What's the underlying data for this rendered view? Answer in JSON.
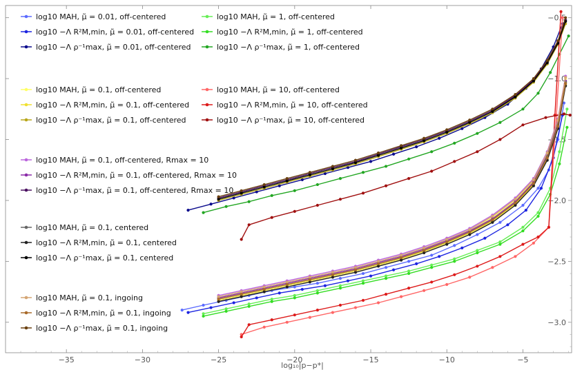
{
  "chart_data": {
    "type": "line",
    "xlabel": "log₁₀|p−p*|",
    "ylabel": "",
    "xlim": [
      -39,
      -1.8
    ],
    "ylim": [
      -3.25,
      -0.4
    ],
    "xticks": [
      -35,
      -30,
      -25,
      -20,
      -15,
      -10,
      -5
    ],
    "yticks": [
      -0.5,
      -1.0,
      -1.5,
      -2.0,
      -2.5,
      -3.0
    ],
    "xtick_labels": [
      "−35",
      "−30",
      "−25",
      "−20",
      "−15",
      "−10",
      "−5"
    ],
    "ytick_labels": [
      "−0.5",
      "−1.0",
      "−1.5",
      "−2.0",
      "−2.5",
      "−3.0"
    ],
    "legend_groups": [
      {
        "entries": [
          {
            "name": "log10 MAH,        μ̃ = 0.01, off-centered",
            "color": "#5b6bff"
          },
          {
            "name": "log10 −Λ R²M,min, μ̃ = 0.01, off-centered",
            "color": "#1c24e0"
          },
          {
            "name": "log10 −Λ ρ⁻¹max,    μ̃ = 0.01, off-centered",
            "color": "#0a0a8c"
          }
        ]
      },
      {
        "entries": [
          {
            "name": "log10 MAH,        μ̃ = 1, off-centered",
            "color": "#66ee55"
          },
          {
            "name": "log10 −Λ R²M,min, μ̃ = 1, off-centered",
            "color": "#33dd22"
          },
          {
            "name": "log10 −Λ ρ⁻¹max,    μ̃ = 1, off-centered",
            "color": "#22a622"
          }
        ]
      },
      {
        "entries": [
          {
            "name": "log10 MAH,        μ̃ = 0.1, off-centered",
            "color": "#ffff66"
          },
          {
            "name": "log10 −Λ R²M,min, μ̃ = 0.1, off-centered",
            "color": "#f0e030"
          },
          {
            "name": "log10 −Λ ρ⁻¹max,    μ̃ = 0.1, off-centered",
            "color": "#b8a61a"
          }
        ]
      },
      {
        "entries": [
          {
            "name": "log10 MAH,        μ̃ = 10, off-centered",
            "color": "#ff6666"
          },
          {
            "name": "log10 −Λ R²M,min, μ̃ = 10, off-centered",
            "color": "#dd1a1a"
          },
          {
            "name": "log10 −Λ ρ⁻¹max,    μ̃ = 10, off-centered",
            "color": "#a01010"
          }
        ]
      },
      {
        "entries": [
          {
            "name": "log10 MAH,        μ̃ = 0.1, off-centered, Rmax = 10",
            "color": "#bb66dd"
          },
          {
            "name": "log10 −Λ R²M,min, μ̃ = 0.1, off-centered, Rmax = 10",
            "color": "#8a2aa8"
          },
          {
            "name": "log10 −Λ ρ⁻¹max,    μ̃ = 0.1, off-centered, Rmax = 10",
            "color": "#4a1060"
          }
        ]
      },
      {
        "entries": [
          {
            "name": "log10 MAH,        μ̃ = 0.1, centered",
            "color": "#666666"
          },
          {
            "name": "log10 −Λ R²M,min, μ̃ = 0.1, centered",
            "color": "#222222"
          },
          {
            "name": "log10 −Λ ρ⁻¹max,    μ̃ = 0.1, centered",
            "color": "#000000"
          }
        ]
      },
      {
        "entries": [
          {
            "name": "log10 MAH,        μ̃ = 0.1, ingoing",
            "color": "#d4a574"
          },
          {
            "name": "log10 −Λ R²M,min, μ̃ = 0.1, ingoing",
            "color": "#a86a2a"
          },
          {
            "name": "log10 −Λ ρ⁻¹max,    μ̃ = 0.1, ingoing",
            "color": "#6a4010"
          }
        ]
      }
    ],
    "legend_labels": [
      [
        "log",
        "10",
        "M",
        "AH",
        ",",
        "μ̃ = 0.01, off-centered"
      ],
      [
        "log",
        "10",
        "−Λ R",
        "M,min",
        ",",
        "μ̃ = 0.01, off-centered"
      ],
      [
        "log",
        "10",
        "−Λ ρ",
        "max",
        ",",
        "μ̃ = 0.01, off-centered"
      ]
    ],
    "series": [
      {
        "name": "log10 MAH, μ̃ = 0.01, off-centered",
        "color": "#5b6bff",
        "x": [
          -27.4,
          -26,
          -24.5,
          -23,
          -21.5,
          -20,
          -18.5,
          -17,
          -15.5,
          -14,
          -12.5,
          -11,
          -9.5,
          -8,
          -6.5,
          -5,
          -4,
          -3.3,
          -2.7,
          -2.3
        ],
        "y": [
          -2.9,
          -2.86,
          -2.82,
          -2.78,
          -2.74,
          -2.71,
          -2.68,
          -2.64,
          -2.6,
          -2.55,
          -2.5,
          -2.45,
          -2.37,
          -2.28,
          -2.18,
          -2.04,
          -1.9,
          -1.75,
          -1.5,
          -1.2
        ]
      },
      {
        "name": "log10 −Λ R²M,min, μ̃ = 0.01, off-centered",
        "color": "#1c24e0",
        "x": [
          -27,
          -25.5,
          -24,
          -22.5,
          -21,
          -19.5,
          -18,
          -16.5,
          -15,
          -13.5,
          -12,
          -10.5,
          -9,
          -7.5,
          -6,
          -4.8,
          -3.8,
          -3,
          -2.4
        ],
        "y": [
          -2.92,
          -2.88,
          -2.84,
          -2.8,
          -2.76,
          -2.73,
          -2.7,
          -2.66,
          -2.62,
          -2.57,
          -2.52,
          -2.46,
          -2.39,
          -2.31,
          -2.2,
          -2.08,
          -1.9,
          -1.65,
          -1.3
        ]
      },
      {
        "name": "log10 −Λ ρ⁻¹max, μ̃ = 0.01, off-centered",
        "color": "#0a0a8c",
        "x": [
          -27,
          -25.5,
          -24,
          -22.5,
          -21,
          -19.5,
          -18,
          -16.5,
          -15,
          -13.5,
          -12,
          -10.5,
          -9,
          -7.5,
          -6,
          -4.8,
          -3.8,
          -3,
          -2.4
        ],
        "y": [
          -2.08,
          -2.03,
          -1.98,
          -1.93,
          -1.88,
          -1.83,
          -1.78,
          -1.73,
          -1.68,
          -1.62,
          -1.56,
          -1.49,
          -1.41,
          -1.32,
          -1.21,
          -1.08,
          -0.92,
          -0.74,
          -0.55
        ]
      },
      {
        "name": "log10 MAH, μ̃ = 1, off-centered",
        "color": "#66ee55",
        "x": [
          -26,
          -24.5,
          -23,
          -21.5,
          -20,
          -18.5,
          -17,
          -15.5,
          -14,
          -12.5,
          -11,
          -9.5,
          -8,
          -6.5,
          -5,
          -4,
          -3.2,
          -2.6,
          -2.1
        ],
        "y": [
          -2.93,
          -2.89,
          -2.85,
          -2.81,
          -2.78,
          -2.74,
          -2.7,
          -2.66,
          -2.62,
          -2.58,
          -2.53,
          -2.48,
          -2.41,
          -2.34,
          -2.22,
          -2.1,
          -1.9,
          -1.6,
          -1.25
        ]
      },
      {
        "name": "log10 −Λ R²M,min, μ̃ = 1, off-centered",
        "color": "#33dd22",
        "x": [
          -26,
          -24.5,
          -23,
          -21.5,
          -20,
          -18.5,
          -17,
          -15.5,
          -14,
          -12.5,
          -11,
          -9.5,
          -8,
          -6.5,
          -5,
          -4,
          -3.2,
          -2.6,
          -2.1
        ],
        "y": [
          -2.95,
          -2.91,
          -2.87,
          -2.83,
          -2.8,
          -2.76,
          -2.72,
          -2.68,
          -2.64,
          -2.6,
          -2.55,
          -2.5,
          -2.43,
          -2.36,
          -2.25,
          -2.13,
          -1.95,
          -1.7,
          -1.4
        ]
      },
      {
        "name": "log10 −Λ ρ⁻¹max, μ̃ = 1, off-centered",
        "color": "#22a622",
        "x": [
          -26,
          -24.5,
          -23,
          -21.5,
          -20,
          -18.5,
          -17,
          -15.5,
          -14,
          -12.5,
          -11,
          -9.5,
          -8,
          -6.5,
          -5,
          -4,
          -3.2,
          -2.6,
          -2
        ],
        "y": [
          -2.1,
          -2.05,
          -2.01,
          -1.96,
          -1.92,
          -1.87,
          -1.82,
          -1.77,
          -1.72,
          -1.66,
          -1.6,
          -1.53,
          -1.45,
          -1.36,
          -1.25,
          -1.12,
          -0.95,
          -0.8,
          -0.65
        ]
      },
      {
        "name": "log10 MAH, μ̃ = 0.1, off-centered",
        "color": "#ffff66",
        "x": [
          -25,
          -23.5,
          -22,
          -20.5,
          -19,
          -17.5,
          -16,
          -14.5,
          -13,
          -11.5,
          -10,
          -8.5,
          -7,
          -5.5,
          -4.3,
          -3.4,
          -2.7,
          -2.2
        ],
        "y": [
          -2.8,
          -2.76,
          -2.72,
          -2.68,
          -2.64,
          -2.6,
          -2.56,
          -2.51,
          -2.46,
          -2.4,
          -2.33,
          -2.25,
          -2.14,
          -2.0,
          -1.84,
          -1.62,
          -1.35,
          -1.0
        ]
      },
      {
        "name": "log10 −Λ R²M,min, μ̃ = 0.1, off-centered",
        "color": "#f0e030",
        "x": [
          -25,
          -23.5,
          -22,
          -20.5,
          -19,
          -17.5,
          -16,
          -14.5,
          -13,
          -11.5,
          -10,
          -8.5,
          -7,
          -5.5,
          -4.3,
          -3.4,
          -2.7,
          -2.2
        ],
        "y": [
          -2.82,
          -2.78,
          -2.74,
          -2.7,
          -2.66,
          -2.62,
          -2.58,
          -2.53,
          -2.48,
          -2.42,
          -2.35,
          -2.27,
          -2.17,
          -2.03,
          -1.87,
          -1.66,
          -1.4,
          -1.05
        ]
      },
      {
        "name": "log10 −Λ ρ⁻¹max, μ̃ = 0.1, off-centered",
        "color": "#b8a61a",
        "x": [
          -25,
          -23.5,
          -22,
          -20.5,
          -19,
          -17.5,
          -16,
          -14.5,
          -13,
          -11.5,
          -10,
          -8.5,
          -7,
          -5.5,
          -4.3,
          -3.4,
          -2.7,
          -2.2
        ],
        "y": [
          -2.0,
          -1.95,
          -1.9,
          -1.85,
          -1.8,
          -1.75,
          -1.7,
          -1.64,
          -1.58,
          -1.52,
          -1.45,
          -1.37,
          -1.28,
          -1.16,
          -1.03,
          -0.88,
          -0.72,
          -0.55
        ]
      },
      {
        "name": "log10 MAH, μ̃ = 10, off-centered",
        "color": "#ff6666",
        "x": [
          -23.5,
          -22,
          -20.5,
          -19,
          -17.5,
          -16,
          -14.5,
          -13,
          -11.5,
          -10,
          -8.5,
          -7,
          -5.5,
          -4.3,
          -3.3,
          -2.8,
          -2.4
        ],
        "y": [
          -3.1,
          -3.04,
          -3.0,
          -2.96,
          -2.92,
          -2.88,
          -2.84,
          -2.79,
          -2.74,
          -2.69,
          -2.63,
          -2.55,
          -2.46,
          -2.35,
          -2.22,
          -1.3,
          -0.5
        ]
      },
      {
        "name": "log10 −Λ R²M,min, μ̃ = 10, off-centered",
        "color": "#dd1a1a",
        "x": [
          -23.5,
          -23,
          -21.5,
          -20,
          -18.5,
          -17,
          -15.5,
          -14,
          -12.5,
          -11,
          -9.5,
          -8,
          -6.5,
          -5,
          -4,
          -3.3,
          -2.9,
          -2.5
        ],
        "y": [
          -3.12,
          -3.02,
          -2.98,
          -2.94,
          -2.9,
          -2.86,
          -2.82,
          -2.77,
          -2.72,
          -2.67,
          -2.61,
          -2.54,
          -2.46,
          -2.36,
          -2.3,
          -2.22,
          -1.3,
          -0.45
        ]
      },
      {
        "name": "log10 −Λ ρ⁻¹max, μ̃ = 10, off-centered",
        "color": "#a01010",
        "x": [
          -23.5,
          -23,
          -21.5,
          -20,
          -18.5,
          -17,
          -15.5,
          -14,
          -12.5,
          -11,
          -9.5,
          -8,
          -6.5,
          -5,
          -3.5,
          -2.3,
          -1.9
        ],
        "y": [
          -2.32,
          -2.2,
          -2.14,
          -2.09,
          -2.04,
          -1.99,
          -1.94,
          -1.88,
          -1.82,
          -1.76,
          -1.68,
          -1.6,
          -1.5,
          -1.38,
          -1.32,
          -1.29,
          -1.3
        ]
      },
      {
        "name": "log10 MAH, μ̃ = 0.1, off-centered, Rmax = 10",
        "color": "#bb66dd",
        "x": [
          -25,
          -23.5,
          -22,
          -20.5,
          -19,
          -17.5,
          -16,
          -14.5,
          -13,
          -11.5,
          -10,
          -8.5,
          -7,
          -5.5,
          -4.3,
          -3.4,
          -2.7,
          -2.2
        ],
        "y": [
          -2.78,
          -2.74,
          -2.7,
          -2.66,
          -2.62,
          -2.58,
          -2.54,
          -2.49,
          -2.44,
          -2.38,
          -2.31,
          -2.23,
          -2.12,
          -1.98,
          -1.82,
          -1.6,
          -1.33,
          -0.98
        ]
      },
      {
        "name": "log10 −Λ R²M,min, μ̃ = 0.1, off-centered, Rmax = 10",
        "color": "#8a2aa8",
        "x": [
          -25,
          -23.5,
          -22,
          -20.5,
          -19,
          -17.5,
          -16,
          -14.5,
          -13,
          -11.5,
          -10,
          -8.5,
          -7,
          -5.5,
          -4.3,
          -3.4,
          -2.7,
          -2.2
        ],
        "y": [
          -2.8,
          -2.76,
          -2.72,
          -2.68,
          -2.64,
          -2.6,
          -2.56,
          -2.51,
          -2.46,
          -2.4,
          -2.33,
          -2.25,
          -2.15,
          -2.01,
          -1.85,
          -1.63,
          -1.37,
          -1.02
        ]
      },
      {
        "name": "log10 −Λ ρ⁻¹max, μ̃ = 0.1, off-centered, Rmax = 10",
        "color": "#4a1060",
        "x": [
          -25,
          -23.5,
          -22,
          -20.5,
          -19,
          -17.5,
          -16,
          -14.5,
          -13,
          -11.5,
          -10,
          -8.5,
          -7,
          -5.5,
          -4.3,
          -3.4,
          -2.7,
          -2.2
        ],
        "y": [
          -1.98,
          -1.93,
          -1.88,
          -1.83,
          -1.78,
          -1.73,
          -1.68,
          -1.62,
          -1.56,
          -1.5,
          -1.43,
          -1.35,
          -1.26,
          -1.14,
          -1.01,
          -0.86,
          -0.7,
          -0.52
        ]
      },
      {
        "name": "log10 MAH, μ̃ = 0.1, centered",
        "color": "#666666",
        "x": [
          -25,
          -23.5,
          -22,
          -20.5,
          -19,
          -17.5,
          -16,
          -14.5,
          -13,
          -11.5,
          -10,
          -8.5,
          -7,
          -5.5,
          -4.3,
          -3.4,
          -2.7,
          -2.2
        ],
        "y": [
          -2.81,
          -2.77,
          -2.73,
          -2.69,
          -2.65,
          -2.61,
          -2.57,
          -2.52,
          -2.47,
          -2.41,
          -2.34,
          -2.26,
          -2.16,
          -2.02,
          -1.86,
          -1.64,
          -1.38,
          -1.03
        ]
      },
      {
        "name": "log10 −Λ R²M,min, μ̃ = 0.1, centered",
        "color": "#222222",
        "x": [
          -25,
          -23.5,
          -22,
          -20.5,
          -19,
          -17.5,
          -16,
          -14.5,
          -13,
          -11.5,
          -10,
          -8.5,
          -7,
          -5.5,
          -4.3,
          -3.4,
          -2.7,
          -2.2
        ],
        "y": [
          -2.83,
          -2.79,
          -2.75,
          -2.71,
          -2.67,
          -2.63,
          -2.59,
          -2.54,
          -2.49,
          -2.43,
          -2.36,
          -2.28,
          -2.18,
          -2.04,
          -1.88,
          -1.67,
          -1.41,
          -1.06
        ]
      },
      {
        "name": "log10 −Λ ρ⁻¹max, μ̃ = 0.1, centered",
        "color": "#000000",
        "x": [
          -25,
          -23.5,
          -22,
          -20.5,
          -19,
          -17.5,
          -16,
          -14.5,
          -13,
          -11.5,
          -10,
          -8.5,
          -7,
          -5.5,
          -4.3,
          -3.4,
          -2.7,
          -2.2
        ],
        "y": [
          -1.99,
          -1.94,
          -1.89,
          -1.84,
          -1.79,
          -1.74,
          -1.69,
          -1.63,
          -1.57,
          -1.51,
          -1.44,
          -1.36,
          -1.27,
          -1.15,
          -1.02,
          -0.87,
          -0.71,
          -0.53
        ]
      },
      {
        "name": "log10 MAH, μ̃ = 0.1, ingoing",
        "color": "#d4a574",
        "x": [
          -25,
          -23.5,
          -22,
          -20.5,
          -19,
          -17.5,
          -16,
          -14.5,
          -13,
          -11.5,
          -10,
          -8.5,
          -7,
          -5.5,
          -4.3,
          -3.4,
          -2.7,
          -2.2
        ],
        "y": [
          -2.79,
          -2.75,
          -2.71,
          -2.67,
          -2.63,
          -2.59,
          -2.55,
          -2.5,
          -2.45,
          -2.39,
          -2.32,
          -2.24,
          -2.13,
          -1.99,
          -1.83,
          -1.61,
          -1.34,
          -0.99
        ]
      },
      {
        "name": "log10 −Λ R²M,min, μ̃ = 0.1, ingoing",
        "color": "#a86a2a",
        "x": [
          -25,
          -23.5,
          -22,
          -20.5,
          -19,
          -17.5,
          -16,
          -14.5,
          -13,
          -11.5,
          -10,
          -8.5,
          -7,
          -5.5,
          -4.3,
          -3.4,
          -2.7,
          -2.2
        ],
        "y": [
          -2.81,
          -2.77,
          -2.73,
          -2.69,
          -2.65,
          -2.61,
          -2.57,
          -2.52,
          -2.47,
          -2.41,
          -2.34,
          -2.26,
          -2.16,
          -2.02,
          -1.86,
          -1.65,
          -1.39,
          -1.04
        ]
      },
      {
        "name": "log10 −Λ ρ⁻¹max, μ̃ = 0.1, ingoing",
        "color": "#6a4010",
        "x": [
          -25,
          -23.5,
          -22,
          -20.5,
          -19,
          -17.5,
          -16,
          -14.5,
          -13,
          -11.5,
          -10,
          -8.5,
          -7,
          -5.5,
          -4.3,
          -3.4,
          -2.7,
          -2.2
        ],
        "y": [
          -1.97,
          -1.92,
          -1.87,
          -1.82,
          -1.77,
          -1.72,
          -1.67,
          -1.61,
          -1.55,
          -1.49,
          -1.42,
          -1.34,
          -1.25,
          -1.13,
          -1.0,
          -0.85,
          -0.69,
          -0.5
        ]
      }
    ]
  }
}
